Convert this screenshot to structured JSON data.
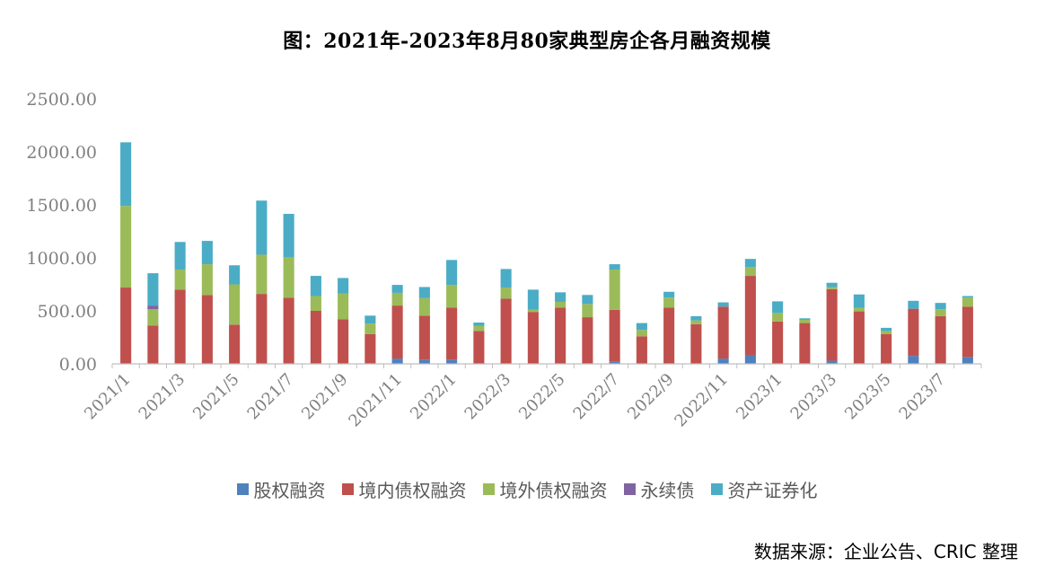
{
  "chart_data": {
    "type": "bar",
    "stacked": true,
    "title": "图：2021年-2023年8月80家典型房企各月融资规模",
    "xlabel": "",
    "ylabel": "",
    "ylim": [
      0,
      2500
    ],
    "y_ticks": [
      "0.00",
      "500.00",
      "1000.00",
      "1500.00",
      "2000.00",
      "2500.00"
    ],
    "categories": [
      "2021/1",
      "2021/2",
      "2021/3",
      "2021/4",
      "2021/5",
      "2021/6",
      "2021/7",
      "2021/8",
      "2021/9",
      "2021/10",
      "2021/11",
      "2021/12",
      "2022/1",
      "2022/2",
      "2022/3",
      "2022/4",
      "2022/5",
      "2022/6",
      "2022/7",
      "2022/8",
      "2022/9",
      "2022/10",
      "2022/11",
      "2022/12",
      "2023/1",
      "2023/2",
      "2023/3",
      "2023/4",
      "2023/5",
      "2023/6",
      "2023/7",
      "2023/8"
    ],
    "shown_x_labels": [
      "2021/1",
      "2021/3",
      "2021/5",
      "2021/7",
      "2021/9",
      "2021/11",
      "2022/1",
      "2022/3",
      "2022/5",
      "2022/7",
      "2022/9",
      "2022/11",
      "2023/1",
      "2023/3",
      "2023/5",
      "2023/7"
    ],
    "series": [
      {
        "name": "股权融资",
        "color": "#4f81bd",
        "values": [
          0,
          0,
          0,
          0,
          0,
          0,
          0,
          0,
          0,
          0,
          50,
          40,
          40,
          0,
          0,
          0,
          0,
          0,
          20,
          0,
          0,
          0,
          50,
          85,
          0,
          0,
          30,
          0,
          0,
          75,
          0,
          65
        ]
      },
      {
        "name": "境内债权融资",
        "color": "#c0504d",
        "values": [
          720,
          360,
          700,
          650,
          370,
          660,
          625,
          500,
          420,
          280,
          500,
          415,
          490,
          310,
          615,
          490,
          530,
          440,
          490,
          260,
          530,
          375,
          490,
          745,
          400,
          385,
          675,
          495,
          280,
          445,
          450,
          475
        ]
      },
      {
        "name": "境外债权融资",
        "color": "#9bbb59",
        "values": [
          770,
          155,
          190,
          290,
          380,
          370,
          380,
          140,
          245,
          100,
          120,
          165,
          215,
          50,
          105,
          20,
          55,
          125,
          380,
          60,
          95,
          35,
          0,
          85,
          80,
          30,
          20,
          35,
          30,
          0,
          65,
          85
        ]
      },
      {
        "name": "永续债",
        "color": "#8064a2",
        "values": [
          0,
          35,
          0,
          0,
          0,
          0,
          0,
          0,
          0,
          0,
          0,
          0,
          0,
          0,
          0,
          0,
          0,
          0,
          0,
          0,
          0,
          0,
          0,
          0,
          0,
          0,
          0,
          0,
          0,
          0,
          0,
          0
        ]
      },
      {
        "name": "资产证券化",
        "color": "#4bacc6",
        "values": [
          600,
          305,
          260,
          220,
          180,
          510,
          410,
          190,
          145,
          75,
          75,
          105,
          235,
          30,
          175,
          190,
          90,
          85,
          50,
          65,
          55,
          40,
          40,
          75,
          110,
          15,
          40,
          125,
          30,
          75,
          60,
          15
        ]
      }
    ]
  },
  "legend_labels": [
    "股权融资",
    "境内债权融资",
    "境外债权融资",
    "永续债",
    "资产证券化"
  ],
  "source_note": "数据来源：企业公告、CRIC 整理"
}
